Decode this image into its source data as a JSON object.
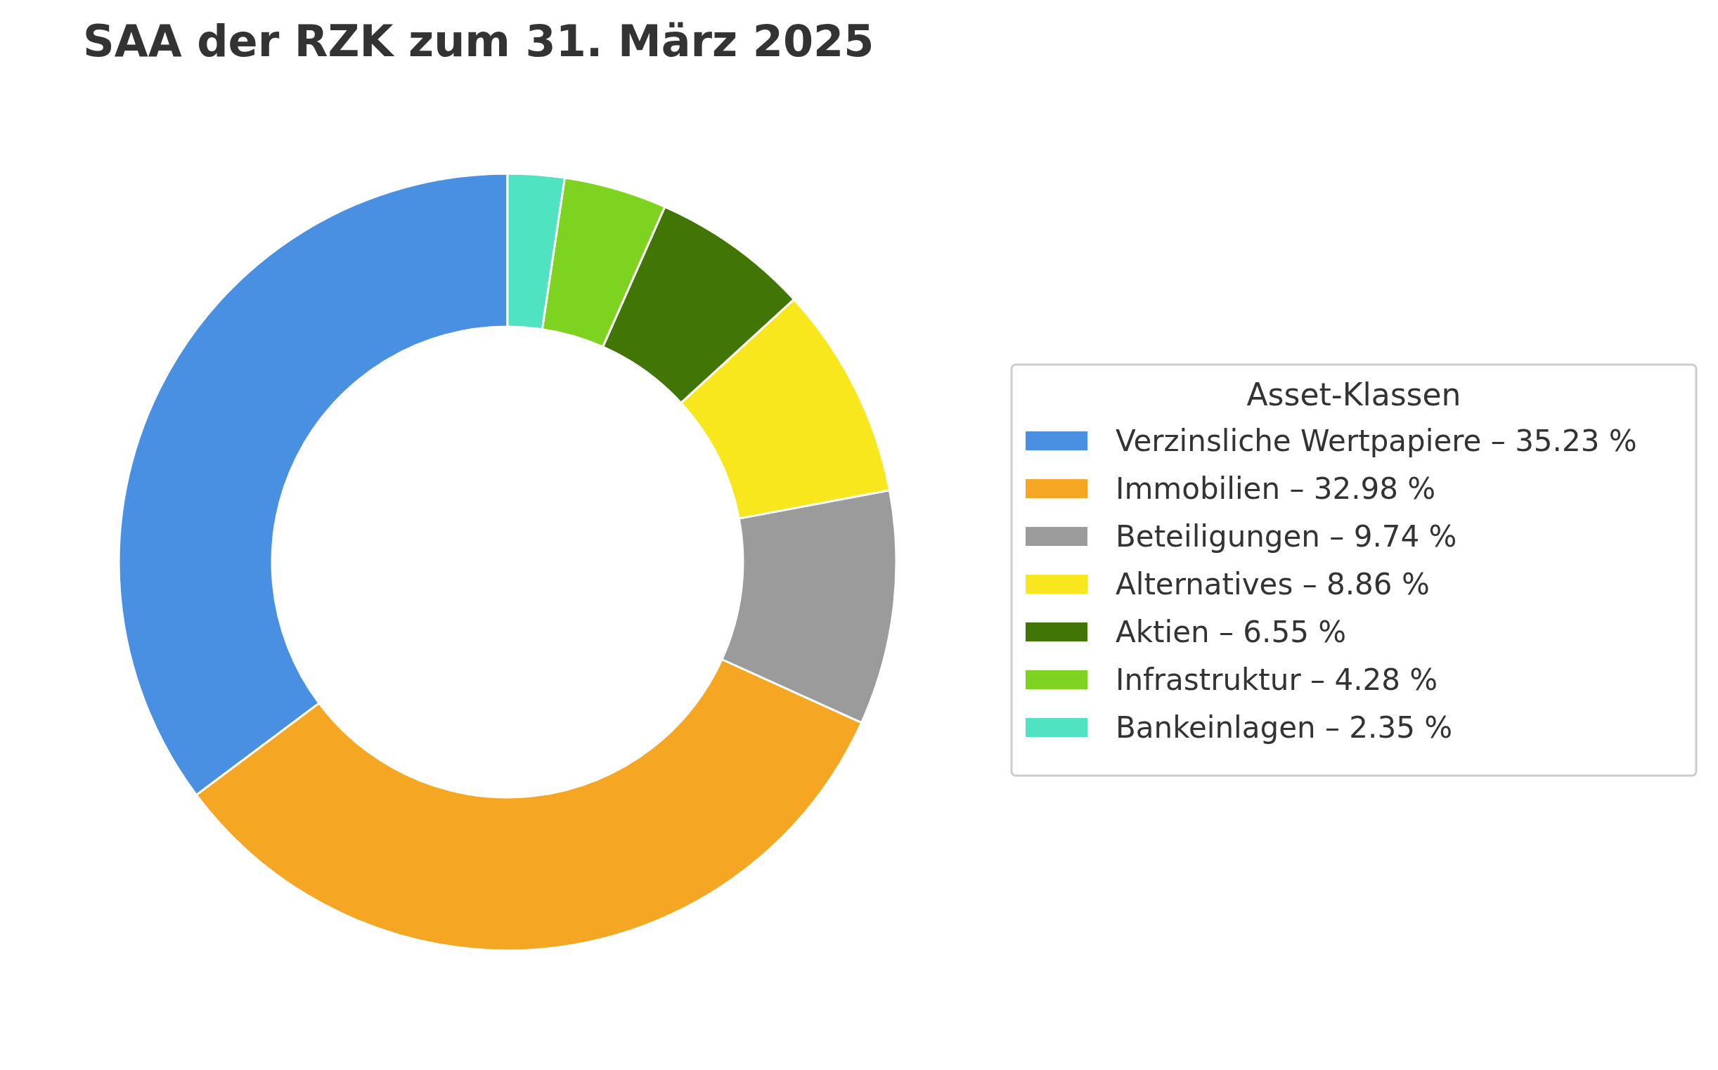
{
  "chart_data": {
    "type": "donut",
    "title": "SAA der RZK zum 31. März 2025",
    "legend_title": "Asset-Klassen",
    "legend": "right",
    "categories": [
      "Verzinsliche Wertpapiere – 35.23 %",
      "Immobilien – 32.98 %",
      "Beteiligungen – 9.74 %",
      "Alternatives – 8.86 %",
      "Aktien – 6.55 %",
      "Infrastruktur – 4.28 %",
      "Bankeinlagen – 2.35 %"
    ],
    "values": [
      35.23,
      32.98,
      9.74,
      8.86,
      6.55,
      4.28,
      2.35
    ],
    "colors": [
      "#4a90e2",
      "#f5a623",
      "#9b9b9b",
      "#f8e71c",
      "#417505",
      "#7ed321",
      "#50e3c2"
    ]
  }
}
